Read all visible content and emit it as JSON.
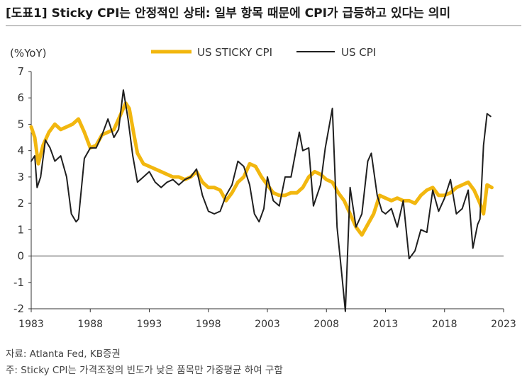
{
  "title": "[도표1] Sticky CPI는 안정적인 상태: 일부 항목 때문에 CPI가 급등하고 있다는 의미",
  "source": "자료: Atlanta Fed, KB증권",
  "note": "주: Sticky CPI는 가격조정의 빈도가 낮은 품목만 가중평균 하여 구함",
  "colors": {
    "sticky": "#F2B70F",
    "cpi": "#1f1f1f",
    "axis": "#333333"
  },
  "chart_data": {
    "type": "line",
    "ylabel": "(%YoY)",
    "xlim": [
      1983,
      2023
    ],
    "ylim": [
      -2,
      7
    ],
    "xticks": [
      "1983",
      "1988",
      "1993",
      "1998",
      "2003",
      "2008",
      "2013",
      "2018",
      "2023"
    ],
    "yticks": [
      "7",
      "6",
      "5",
      "4",
      "3",
      "2",
      "1",
      "0",
      "-1",
      "-2"
    ],
    "legend_position": "top",
    "grid": false,
    "series": [
      {
        "name": "US STICKY CPI",
        "points": [
          [
            1983.0,
            4.9
          ],
          [
            1983.3,
            4.5
          ],
          [
            1983.6,
            3.5
          ],
          [
            1984.0,
            4.2
          ],
          [
            1984.5,
            4.7
          ],
          [
            1985.0,
            5.0
          ],
          [
            1985.5,
            4.8
          ],
          [
            1986.0,
            4.9
          ],
          [
            1986.5,
            5.0
          ],
          [
            1987.0,
            5.2
          ],
          [
            1987.5,
            4.7
          ],
          [
            1988.0,
            4.1
          ],
          [
            1988.5,
            4.2
          ],
          [
            1989.0,
            4.6
          ],
          [
            1989.5,
            4.7
          ],
          [
            1990.0,
            4.8
          ],
          [
            1990.5,
            5.3
          ],
          [
            1991.0,
            5.8
          ],
          [
            1991.3,
            5.6
          ],
          [
            1991.7,
            4.6
          ],
          [
            1992.0,
            3.9
          ],
          [
            1992.5,
            3.5
          ],
          [
            1993.0,
            3.4
          ],
          [
            1993.5,
            3.3
          ],
          [
            1994.0,
            3.2
          ],
          [
            1994.5,
            3.1
          ],
          [
            1995.0,
            3.0
          ],
          [
            1995.5,
            3.0
          ],
          [
            1996.0,
            2.9
          ],
          [
            1996.5,
            3.0
          ],
          [
            1997.0,
            3.2
          ],
          [
            1997.5,
            2.8
          ],
          [
            1998.0,
            2.6
          ],
          [
            1998.5,
            2.6
          ],
          [
            1999.0,
            2.5
          ],
          [
            1999.5,
            2.1
          ],
          [
            2000.0,
            2.4
          ],
          [
            2000.5,
            2.8
          ],
          [
            2001.0,
            3.0
          ],
          [
            2001.5,
            3.5
          ],
          [
            2002.0,
            3.4
          ],
          [
            2002.5,
            3.0
          ],
          [
            2003.0,
            2.7
          ],
          [
            2003.5,
            2.4
          ],
          [
            2004.0,
            2.3
          ],
          [
            2004.5,
            2.3
          ],
          [
            2005.0,
            2.4
          ],
          [
            2005.5,
            2.4
          ],
          [
            2006.0,
            2.6
          ],
          [
            2006.5,
            3.0
          ],
          [
            2007.0,
            3.2
          ],
          [
            2007.5,
            3.1
          ],
          [
            2008.0,
            2.9
          ],
          [
            2008.5,
            2.8
          ],
          [
            2009.0,
            2.4
          ],
          [
            2009.5,
            2.1
          ],
          [
            2010.0,
            1.6
          ],
          [
            2010.5,
            1.1
          ],
          [
            2011.0,
            0.8
          ],
          [
            2011.5,
            1.2
          ],
          [
            2012.0,
            1.6
          ],
          [
            2012.5,
            2.3
          ],
          [
            2013.0,
            2.2
          ],
          [
            2013.5,
            2.1
          ],
          [
            2014.0,
            2.2
          ],
          [
            2014.5,
            2.1
          ],
          [
            2015.0,
            2.1
          ],
          [
            2015.5,
            2.0
          ],
          [
            2016.0,
            2.3
          ],
          [
            2016.5,
            2.5
          ],
          [
            2017.0,
            2.6
          ],
          [
            2017.5,
            2.3
          ],
          [
            2018.0,
            2.3
          ],
          [
            2018.5,
            2.4
          ],
          [
            2019.0,
            2.6
          ],
          [
            2019.5,
            2.7
          ],
          [
            2020.0,
            2.8
          ],
          [
            2020.5,
            2.5
          ],
          [
            2021.0,
            2.0
          ],
          [
            2021.3,
            1.6
          ],
          [
            2021.6,
            2.7
          ],
          [
            2022.0,
            2.6
          ]
        ]
      },
      {
        "name": "US CPI",
        "points": [
          [
            1983.0,
            3.6
          ],
          [
            1983.3,
            3.8
          ],
          [
            1983.5,
            2.6
          ],
          [
            1983.8,
            3.0
          ],
          [
            1984.2,
            4.4
          ],
          [
            1984.6,
            4.1
          ],
          [
            1985.0,
            3.6
          ],
          [
            1985.5,
            3.8
          ],
          [
            1986.0,
            3.0
          ],
          [
            1986.4,
            1.6
          ],
          [
            1986.8,
            1.3
          ],
          [
            1987.0,
            1.4
          ],
          [
            1987.5,
            3.7
          ],
          [
            1988.0,
            4.1
          ],
          [
            1988.5,
            4.1
          ],
          [
            1989.0,
            4.6
          ],
          [
            1989.5,
            5.2
          ],
          [
            1990.0,
            4.5
          ],
          [
            1990.4,
            4.8
          ],
          [
            1990.8,
            6.3
          ],
          [
            1991.2,
            5.2
          ],
          [
            1991.6,
            3.8
          ],
          [
            1992.0,
            2.8
          ],
          [
            1992.5,
            3.0
          ],
          [
            1993.0,
            3.2
          ],
          [
            1993.5,
            2.8
          ],
          [
            1994.0,
            2.6
          ],
          [
            1994.5,
            2.8
          ],
          [
            1995.0,
            2.9
          ],
          [
            1995.5,
            2.7
          ],
          [
            1996.0,
            2.9
          ],
          [
            1996.5,
            3.0
          ],
          [
            1997.0,
            3.3
          ],
          [
            1997.5,
            2.3
          ],
          [
            1998.0,
            1.7
          ],
          [
            1998.5,
            1.6
          ],
          [
            1999.0,
            1.7
          ],
          [
            1999.5,
            2.3
          ],
          [
            2000.0,
            2.7
          ],
          [
            2000.5,
            3.6
          ],
          [
            2001.0,
            3.4
          ],
          [
            2001.5,
            2.7
          ],
          [
            2001.9,
            1.6
          ],
          [
            2002.3,
            1.3
          ],
          [
            2002.7,
            1.8
          ],
          [
            2003.0,
            3.0
          ],
          [
            2003.5,
            2.1
          ],
          [
            2004.0,
            1.9
          ],
          [
            2004.5,
            3.0
          ],
          [
            2005.0,
            3.0
          ],
          [
            2005.7,
            4.7
          ],
          [
            2006.0,
            4.0
          ],
          [
            2006.5,
            4.1
          ],
          [
            2006.9,
            1.9
          ],
          [
            2007.5,
            2.7
          ],
          [
            2007.9,
            4.1
          ],
          [
            2008.5,
            5.6
          ],
          [
            2008.9,
            1.1
          ],
          [
            2009.3,
            -0.7
          ],
          [
            2009.6,
            -2.1
          ],
          [
            2010.0,
            2.6
          ],
          [
            2010.5,
            1.1
          ],
          [
            2011.0,
            1.6
          ],
          [
            2011.5,
            3.6
          ],
          [
            2011.8,
            3.9
          ],
          [
            2012.3,
            2.3
          ],
          [
            2012.7,
            1.7
          ],
          [
            2013.0,
            1.6
          ],
          [
            2013.5,
            1.8
          ],
          [
            2014.0,
            1.1
          ],
          [
            2014.5,
            2.1
          ],
          [
            2015.0,
            -0.1
          ],
          [
            2015.5,
            0.2
          ],
          [
            2016.0,
            1.0
          ],
          [
            2016.5,
            0.9
          ],
          [
            2017.0,
            2.5
          ],
          [
            2017.5,
            1.7
          ],
          [
            2018.0,
            2.2
          ],
          [
            2018.5,
            2.9
          ],
          [
            2019.0,
            1.6
          ],
          [
            2019.5,
            1.8
          ],
          [
            2020.0,
            2.5
          ],
          [
            2020.4,
            0.3
          ],
          [
            2020.8,
            1.2
          ],
          [
            2021.0,
            1.4
          ],
          [
            2021.3,
            4.2
          ],
          [
            2021.6,
            5.4
          ],
          [
            2021.9,
            5.3
          ]
        ]
      }
    ]
  }
}
